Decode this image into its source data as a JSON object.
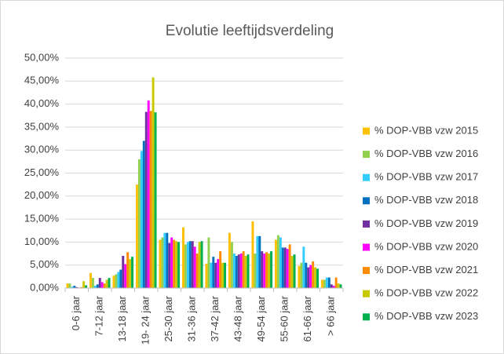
{
  "chart_data": {
    "type": "bar",
    "title": "Evolutie leeftijdsverdeling",
    "categories": [
      "0-6 jaar",
      "7-12 jaar",
      "13-18 jaar",
      "19- 24 jaar",
      "25-30 jaar",
      "31-36 jaar",
      "37-42 jaar",
      "43-48 jaar",
      "49-54 jaar",
      "55-60 jaar",
      "61-66 jaar",
      "> 66 jaar"
    ],
    "series": [
      {
        "name": "% DOP-VBB vzw 2015",
        "color": "#FFC000",
        "values": [
          1.0,
          3.3,
          2.7,
          22.5,
          10.5,
          13.2,
          5.3,
          12.0,
          14.5,
          10.5,
          4.8,
          1.8
        ]
      },
      {
        "name": "% DOP-VBB vzw 2016",
        "color": "#92D050",
        "values": [
          1.0,
          2.2,
          3.0,
          28.0,
          11.0,
          9.5,
          11.0,
          10.0,
          7.5,
          11.5,
          5.5,
          1.8
        ]
      },
      {
        "name": "% DOP-VBB vzw 2017",
        "color": "#33CCFF",
        "values": [
          0.3,
          0.5,
          3.5,
          29.8,
          12.0,
          10.0,
          5.5,
          7.5,
          11.3,
          11.0,
          9.0,
          2.3
        ]
      },
      {
        "name": "% DOP-VBB vzw 2018",
        "color": "#0070C0",
        "values": [
          0.5,
          0.8,
          4.0,
          32.0,
          12.0,
          10.2,
          6.8,
          7.0,
          11.3,
          8.8,
          5.5,
          2.3
        ]
      },
      {
        "name": "% DOP-VBB vzw 2019",
        "color": "#7030A0",
        "values": [
          0.2,
          2.2,
          7.0,
          38.3,
          9.8,
          10.2,
          5.5,
          7.3,
          8.0,
          8.8,
          4.5,
          0.8
        ]
      },
      {
        "name": "% DOP-VBB vzw 2020",
        "color": "#FF00FF",
        "values": [
          0.1,
          1.3,
          5.2,
          40.8,
          11.0,
          9.0,
          6.3,
          7.5,
          7.5,
          8.5,
          5.0,
          0.5
        ]
      },
      {
        "name": "% DOP-VBB vzw 2021",
        "color": "#FF8C00",
        "values": [
          0.2,
          1.0,
          7.8,
          38.5,
          10.5,
          7.5,
          8.0,
          8.0,
          7.8,
          9.5,
          5.8,
          2.3
        ]
      },
      {
        "name": "% DOP-VBB vzw 2022",
        "color": "#C9C900",
        "values": [
          1.5,
          1.8,
          6.3,
          45.8,
          10.2,
          10.0,
          5.5,
          7.0,
          7.5,
          7.0,
          4.5,
          1.0
        ]
      },
      {
        "name": "% DOP-VBB vzw 2023",
        "color": "#00B050",
        "values": [
          0.6,
          2.2,
          6.8,
          38.2,
          10.0,
          10.2,
          5.5,
          7.3,
          8.0,
          7.3,
          4.2,
          0.8
        ]
      }
    ],
    "ylim": [
      0,
      50
    ],
    "yticks": [
      {
        "value": 0,
        "label": "0,00%"
      },
      {
        "value": 5,
        "label": "5,00%"
      },
      {
        "value": 10,
        "label": "10,00%"
      },
      {
        "value": 15,
        "label": "15,00%"
      },
      {
        "value": 20,
        "label": "20,00%"
      },
      {
        "value": 25,
        "label": "25,00%"
      },
      {
        "value": 30,
        "label": "30,00%"
      },
      {
        "value": 35,
        "label": "35,00%"
      },
      {
        "value": 40,
        "label": "40,00%"
      },
      {
        "value": 45,
        "label": "45,00%"
      },
      {
        "value": 50,
        "label": "50,00%"
      }
    ],
    "grid": true
  }
}
